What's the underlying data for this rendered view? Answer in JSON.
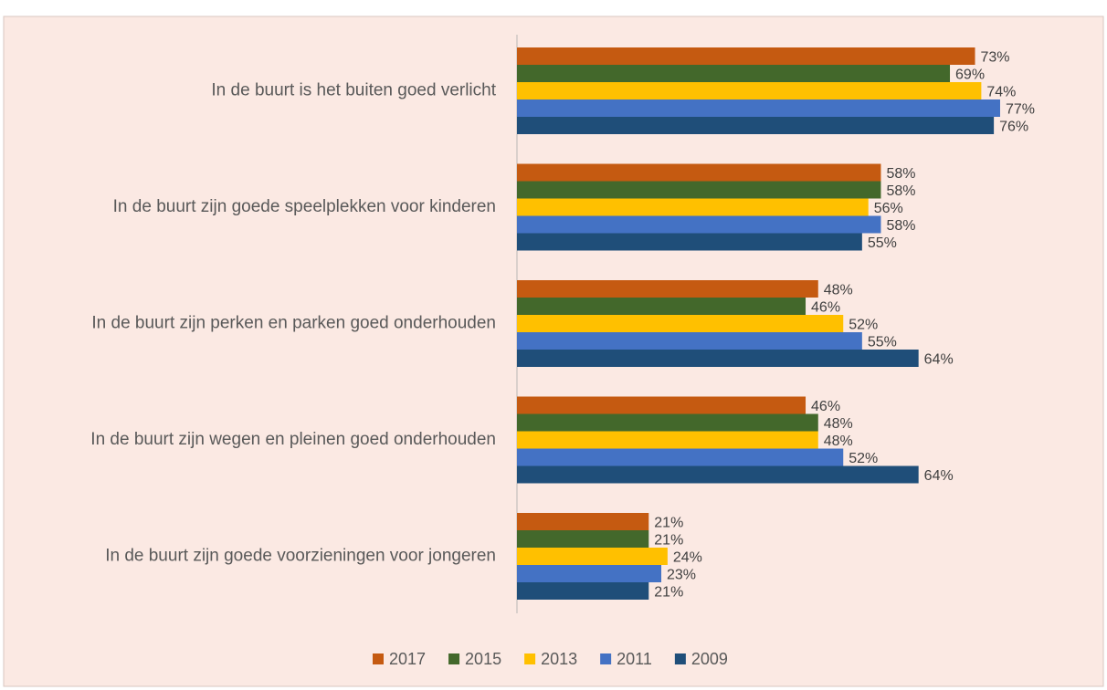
{
  "chart_data": {
    "type": "bar",
    "orientation": "horizontal",
    "categories": [
      "In de buurt is het buiten goed verlicht",
      "In de buurt zijn goede speelplekken voor kinderen",
      "In de buurt zijn perken en parken goed onderhouden",
      "In de buurt zijn wegen en pleinen goed onderhouden",
      "In de buurt zijn goede voorzieningen voor jongeren"
    ],
    "series": [
      {
        "name": "2017",
        "color": "#c55a11",
        "values": [
          73,
          58,
          48,
          46,
          21
        ],
        "value_labels": [
          "73%",
          "58%",
          "48%",
          "46%",
          "21%"
        ]
      },
      {
        "name": "2015",
        "color": "#43682b",
        "values": [
          69,
          58,
          46,
          48,
          21
        ],
        "value_labels": [
          "69%",
          "58%",
          "46%",
          "48%",
          "21%"
        ]
      },
      {
        "name": "2013",
        "color": "#ffc000",
        "values": [
          74,
          56,
          52,
          48,
          24
        ],
        "value_labels": [
          "74%",
          "56%",
          "52%",
          "48%",
          "24%"
        ]
      },
      {
        "name": "2011",
        "color": "#4472c4",
        "values": [
          77,
          58,
          55,
          52,
          23
        ],
        "value_labels": [
          "77%",
          "58%",
          "55%",
          "52%",
          "23%"
        ]
      },
      {
        "name": "2009",
        "color": "#1f4e79",
        "values": [
          76,
          55,
          64,
          64,
          21
        ],
        "value_labels": [
          "76%",
          "55%",
          "64%",
          "64%",
          "21%"
        ]
      }
    ],
    "legend": "bottom"
  }
}
